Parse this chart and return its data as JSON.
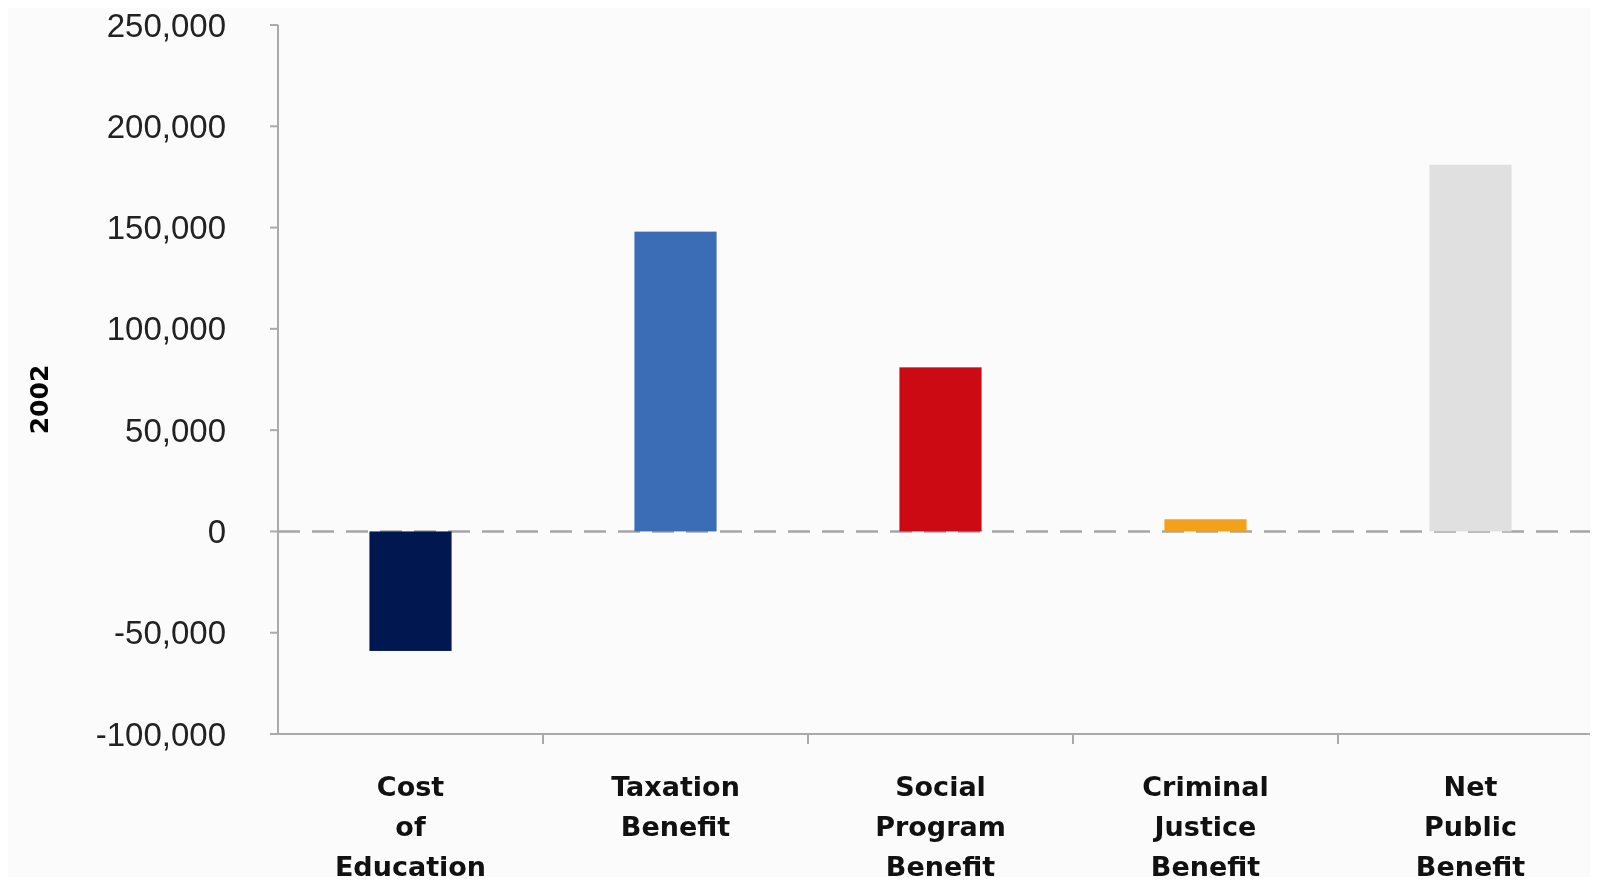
{
  "chart_data": {
    "type": "bar",
    "ylabel": "2002",
    "categories": [
      "Cost of Education",
      "Taxation Benefit",
      "Social Program Benefit",
      "Criminal Justice Benefit",
      "Net Public Benefit"
    ],
    "values": [
      -59000,
      148000,
      81000,
      6000,
      181000
    ],
    "colors": [
      "#00174f",
      "#3a6db5",
      "#cc0a14",
      "#f2a11a",
      "#e0e0e0"
    ],
    "ylim": [
      -100000,
      250000
    ],
    "yticks": [
      {
        "value": -100000,
        "label": "-100,000"
      },
      {
        "value": -50000,
        "label": "-50,000"
      },
      0,
      {
        "value": 50000,
        "label": "50,000"
      },
      {
        "value": 100000,
        "label": "100,000"
      },
      {
        "value": 150000,
        "label": "150,000"
      },
      {
        "value": 200000,
        "label": "200,000"
      },
      {
        "value": 250000,
        "label": "250,000"
      }
    ],
    "ref_lines": [
      {
        "axis": "y",
        "value": 0,
        "color": "#a6a6a6",
        "line_style": "dashed"
      }
    ],
    "grid": false
  }
}
